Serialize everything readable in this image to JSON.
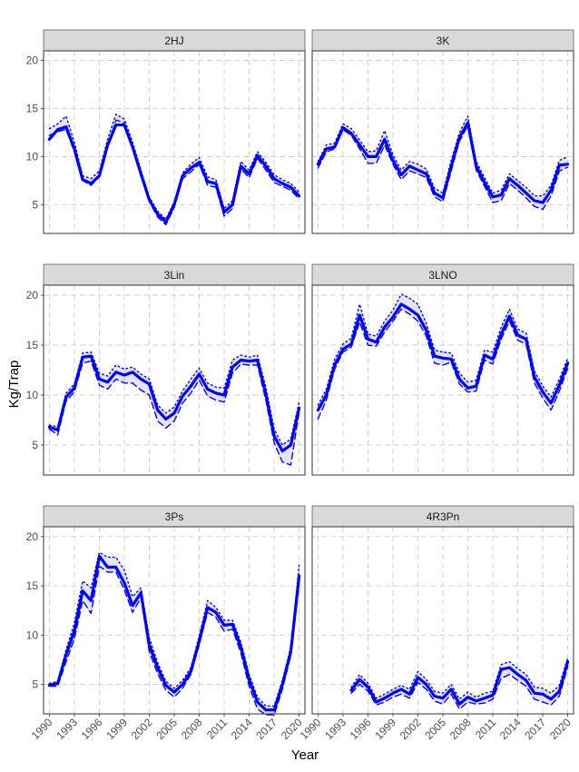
{
  "chart_data": {
    "type": "line",
    "xlabel": "Year",
    "ylabel": "Kg/Trap",
    "ylim": [
      2,
      21
    ],
    "xlim": [
      1989.3,
      2020.7
    ],
    "y_ticks": [
      5,
      10,
      15,
      20
    ],
    "x_ticks": [
      1990,
      1993,
      1996,
      1999,
      2002,
      2005,
      2008,
      2011,
      2014,
      2017,
      2020
    ],
    "grid": true,
    "line_color": "#0000ff",
    "band_color": "#6b6bff",
    "series_styles": [
      "solid",
      "dashed",
      "dotted"
    ],
    "panels": [
      {
        "label": "2HJ",
        "x": [
          1990,
          1991,
          1992,
          1993,
          1994,
          1995,
          1996,
          1997,
          1998,
          1999,
          2000,
          2001,
          2002,
          2003,
          2004,
          2005,
          2006,
          2007,
          2008,
          2009,
          2010,
          2011,
          2012,
          2013,
          2014,
          2015,
          2016,
          2017,
          2018,
          2019,
          2020
        ],
        "series": [
          {
            "values": [
              11.8,
              12.8,
              13.1,
              10.8,
              7.6,
              7.2,
              8.0,
              11.2,
              13.3,
              13.3,
              11.0,
              8.2,
              5.5,
              4.0,
              3.2,
              5.0,
              8.0,
              8.8,
              9.4,
              7.4,
              7.2,
              4.2,
              5.0,
              9.0,
              8.2,
              10.1,
              9.0,
              7.7,
              7.2,
              6.8,
              5.9
            ]
          },
          {
            "values": [
              12.2,
              12.6,
              12.8,
              10.5,
              7.5,
              7.0,
              7.9,
              11.0,
              13.8,
              13.5,
              10.8,
              8.0,
              5.3,
              3.7,
              2.9,
              4.7,
              7.7,
              8.4,
              9.2,
              7.0,
              6.8,
              3.8,
              4.6,
              8.7,
              7.8,
              9.8,
              8.6,
              7.3,
              6.9,
              6.5,
              5.6
            ]
          },
          {
            "values": [
              12.9,
              13.4,
              14.2,
              11.5,
              8.0,
              7.7,
              8.5,
              11.8,
              14.4,
              13.9,
              11.5,
              8.6,
              5.8,
              4.3,
              3.5,
              5.3,
              8.3,
              9.2,
              9.9,
              7.9,
              7.6,
              4.6,
              5.4,
              9.5,
              8.6,
              10.5,
              9.4,
              8.1,
              7.6,
              7.2,
              6.3
            ]
          }
        ]
      },
      {
        "label": "3K",
        "x": [
          1990,
          1991,
          1992,
          1993,
          1994,
          1995,
          1996,
          1997,
          1998,
          1999,
          2000,
          2001,
          2002,
          2003,
          2004,
          2005,
          2006,
          2007,
          2008,
          2009,
          2010,
          2011,
          2012,
          2013,
          2014,
          2015,
          2016,
          2017,
          2018,
          2019,
          2020
        ],
        "series": [
          {
            "values": [
              9.2,
              10.8,
              11.0,
              13.0,
              12.4,
              11.2,
              10.0,
              10.0,
              11.8,
              9.6,
              8.1,
              9.0,
              8.6,
              8.2,
              6.2,
              5.7,
              9.0,
              12.0,
              13.5,
              9.0,
              7.3,
              5.8,
              6.0,
              7.7,
              7.0,
              6.2,
              5.4,
              5.2,
              6.5,
              9.1,
              9.2
            ]
          },
          {
            "values": [
              8.8,
              10.5,
              10.8,
              12.8,
              12.2,
              10.8,
              9.3,
              9.3,
              11.2,
              9.2,
              7.6,
              8.5,
              8.2,
              7.8,
              5.8,
              5.3,
              8.5,
              11.6,
              13.2,
              8.6,
              6.9,
              5.2,
              5.4,
              7.2,
              6.5,
              5.7,
              4.8,
              4.5,
              5.9,
              8.5,
              8.9
            ]
          },
          {
            "values": [
              9.5,
              11.2,
              11.4,
              13.4,
              12.9,
              11.7,
              10.5,
              10.6,
              12.7,
              10.2,
              8.6,
              9.5,
              9.2,
              8.7,
              6.7,
              6.2,
              9.6,
              12.5,
              14.2,
              9.5,
              7.8,
              6.2,
              6.5,
              8.2,
              7.5,
              6.8,
              5.9,
              5.9,
              7.0,
              9.6,
              10.0
            ]
          }
        ]
      },
      {
        "label": "3Lin",
        "x": [
          1990,
          1991,
          1992,
          1993,
          1994,
          1995,
          1996,
          1997,
          1998,
          1999,
          2000,
          2001,
          2002,
          2003,
          2004,
          2005,
          2006,
          2007,
          2008,
          2009,
          2010,
          2011,
          2012,
          2013,
          2014,
          2015,
          2016,
          2017,
          2018,
          2019,
          2020
        ],
        "series": [
          {
            "values": [
              6.8,
              6.5,
              9.8,
              10.7,
              13.8,
              13.9,
              11.6,
              11.3,
              12.3,
              12.0,
              12.3,
              11.6,
              11.1,
              8.5,
              7.6,
              8.2,
              9.9,
              10.9,
              12.1,
              10.6,
              10.2,
              10.0,
              12.8,
              13.5,
              13.4,
              13.5,
              10.1,
              5.9,
              4.4,
              5.0,
              8.7
            ]
          },
          {
            "values": [
              6.6,
              6.0,
              9.4,
              10.3,
              13.2,
              13.4,
              11.0,
              10.6,
              11.6,
              11.2,
              11.2,
              10.5,
              10.0,
              7.4,
              6.7,
              7.4,
              9.2,
              10.2,
              11.5,
              9.9,
              9.5,
              9.3,
              12.2,
              13.1,
              13.0,
              13.0,
              9.5,
              5.2,
              3.3,
              3.0,
              8.3
            ]
          },
          {
            "values": [
              7.0,
              6.8,
              10.2,
              11.1,
              14.2,
              14.3,
              12.2,
              11.9,
              13.0,
              12.6,
              12.8,
              12.1,
              11.6,
              9.0,
              8.2,
              8.8,
              10.4,
              11.6,
              12.7,
              11.2,
              10.8,
              10.7,
              13.5,
              14.0,
              13.8,
              14.0,
              10.8,
              6.6,
              5.0,
              5.6,
              9.3
            ]
          }
        ]
      },
      {
        "label": "3LNO",
        "x": [
          1990,
          1991,
          1992,
          1993,
          1994,
          1995,
          1996,
          1997,
          1998,
          1999,
          2000,
          2001,
          2002,
          2003,
          2004,
          2005,
          2006,
          2007,
          2008,
          2009,
          2010,
          2011,
          2012,
          2013,
          2014,
          2015,
          2016,
          2017,
          2018,
          2019,
          2020
        ],
        "series": [
          {
            "values": [
              8.5,
              10.0,
              13.0,
              14.6,
              15.1,
              18.0,
              15.6,
              15.3,
              16.8,
              17.8,
              19.1,
              18.6,
              18.0,
              16.5,
              13.9,
              13.7,
              13.6,
              11.6,
              10.7,
              10.9,
              14.0,
              13.6,
              16.1,
              17.9,
              16.0,
              15.6,
              11.8,
              10.3,
              9.2,
              11.0,
              13.2
            ]
          },
          {
            "values": [
              7.6,
              9.5,
              12.6,
              14.3,
              14.8,
              17.3,
              15.0,
              14.9,
              16.3,
              17.4,
              18.6,
              18.1,
              17.4,
              15.9,
              13.2,
              13.0,
              13.3,
              11.1,
              10.3,
              10.4,
              13.5,
              13.1,
              15.6,
              17.4,
              15.5,
              15.1,
              11.2,
              9.7,
              8.5,
              10.4,
              12.7
            ]
          },
          {
            "values": [
              9.0,
              10.6,
              13.6,
              15.1,
              15.7,
              19.1,
              16.1,
              15.9,
              17.4,
              18.5,
              20.1,
              19.7,
              19.1,
              17.2,
              14.5,
              14.3,
              14.2,
              12.2,
              11.3,
              11.5,
              14.5,
              14.3,
              16.8,
              18.6,
              16.6,
              16.2,
              12.4,
              10.9,
              9.8,
              11.6,
              13.7
            ]
          }
        ]
      },
      {
        "label": "3Ps",
        "x": [
          1990,
          1991,
          1992,
          1993,
          1994,
          1995,
          1996,
          1997,
          1998,
          1999,
          2000,
          2001,
          2002,
          2003,
          2004,
          2005,
          2006,
          2007,
          2008,
          2009,
          2010,
          2011,
          2012,
          2013,
          2014,
          2015,
          2016,
          2017,
          2018,
          2019,
          2020
        ],
        "series": [
          {
            "values": [
              4.9,
              5.1,
              8.0,
              10.4,
              14.5,
              13.5,
              18.0,
              16.9,
              16.9,
              15.3,
              13.0,
              14.3,
              9.0,
              6.7,
              4.9,
              4.2,
              5.0,
              6.3,
              9.4,
              12.8,
              12.3,
              11.0,
              11.1,
              8.8,
              5.5,
              3.2,
              2.4,
              2.4,
              5.0,
              8.3,
              16.0
            ]
          },
          {
            "values": [
              4.8,
              4.8,
              7.3,
              9.6,
              13.5,
              12.2,
              17.0,
              16.4,
              16.4,
              14.6,
              12.3,
              13.8,
              8.3,
              6.1,
              4.4,
              3.7,
              4.6,
              6.0,
              9.0,
              12.3,
              11.8,
              10.4,
              10.6,
              8.2,
              4.8,
              2.5,
              1.9,
              1.9,
              4.5,
              7.9,
              15.2
            ]
          },
          {
            "values": [
              5.1,
              5.3,
              8.5,
              11.2,
              15.5,
              14.8,
              18.4,
              17.9,
              17.9,
              16.6,
              13.9,
              14.8,
              9.7,
              7.2,
              5.3,
              4.6,
              5.4,
              6.7,
              9.9,
              13.5,
              12.8,
              11.5,
              11.5,
              9.3,
              6.0,
              3.7,
              2.8,
              2.8,
              5.4,
              8.8,
              17.1
            ]
          }
        ]
      },
      {
        "label": "4R3Pn",
        "x": [
          1994,
          1995,
          1996,
          1997,
          1998,
          1999,
          2000,
          2001,
          2002,
          2003,
          2004,
          2005,
          2006,
          2007,
          2008,
          2009,
          2010,
          2011,
          2012,
          2013,
          2014,
          2015,
          2016,
          2017,
          2018,
          2019,
          2020
        ],
        "series": [
          {
            "values": [
              4.4,
              5.5,
              4.7,
              3.2,
              3.6,
              4.1,
              4.5,
              4.0,
              5.7,
              5.0,
              3.8,
              3.6,
              4.5,
              3.0,
              3.7,
              3.3,
              3.6,
              3.9,
              6.5,
              6.7,
              6.0,
              5.4,
              4.1,
              4.0,
              3.5,
              4.3,
              7.3
            ]
          },
          {
            "values": [
              4.1,
              5.0,
              4.3,
              2.9,
              3.2,
              3.7,
              4.0,
              3.6,
              5.2,
              4.5,
              3.3,
              3.0,
              4.0,
              2.5,
              3.2,
              3.0,
              3.1,
              3.5,
              5.6,
              6.0,
              5.4,
              4.8,
              3.5,
              3.2,
              2.9,
              3.8,
              6.8
            ]
          },
          {
            "values": [
              4.7,
              6.0,
              5.1,
              3.6,
              4.0,
              4.5,
              4.9,
              4.5,
              6.3,
              5.5,
              4.3,
              4.1,
              5.0,
              3.5,
              4.2,
              3.7,
              4.1,
              4.3,
              7.0,
              7.3,
              6.6,
              6.0,
              4.7,
              4.6,
              4.1,
              4.9,
              7.7
            ]
          }
        ]
      }
    ]
  }
}
